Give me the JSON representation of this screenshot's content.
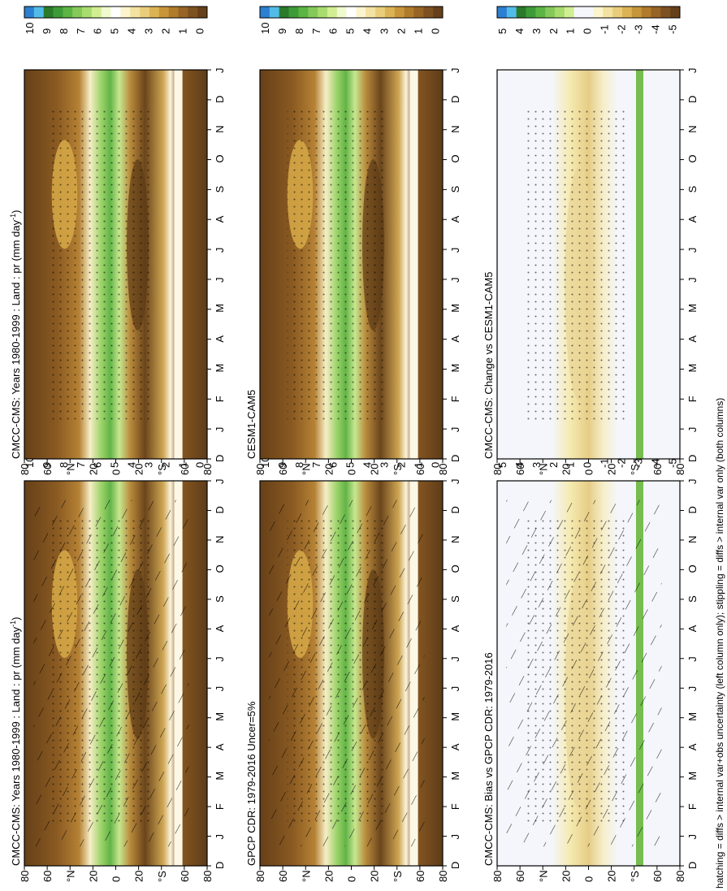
{
  "figure": {
    "footnote": "hatching = diffs > internal var+obs uncertainty (left column only); stippling = diffs > internal var only (both columns)"
  },
  "chart_data": [
    {
      "id": "left_top",
      "type": "heatmap",
      "title": "CMCC-CMS: Years 1980-1999 : Land : pr (mm day",
      "title_sup": "-1",
      "title_tail": ")",
      "x_months": [
        "D",
        "J",
        "F",
        "M",
        "A",
        "M",
        "J",
        "J",
        "A",
        "S",
        "O",
        "N",
        "D",
        "J"
      ],
      "lat_labels": [
        "80",
        "60",
        "°N",
        "20",
        "0",
        "20",
        "°S",
        "60",
        "80"
      ],
      "colorbar": {
        "ticks": [
          "10",
          "9",
          "8",
          "7",
          "6",
          "5",
          "4",
          "3",
          "2",
          "1",
          "0"
        ],
        "colors": [
          "#2c7fd1",
          "#52bce8",
          "#2a7a2a",
          "#3d9b37",
          "#5bb443",
          "#84c95a",
          "#a9dc6e",
          "#d2ee93",
          "#f1f9cf",
          "#ffffff",
          "#fbf4cd",
          "#f3e2a1",
          "#e9cd7b",
          "#dcb354",
          "#c8963a",
          "#b07b2b",
          "#976425",
          "#7e5120",
          "#66401a"
        ]
      },
      "hatching": true,
      "stippling": true
    },
    {
      "id": "right_top",
      "type": "heatmap",
      "title": "CMCC-CMS: Years 1980-1999 : Land : pr (mm day",
      "title_sup": "-1",
      "title_tail": ")",
      "x_months": [
        "D",
        "J",
        "F",
        "M",
        "A",
        "M",
        "J",
        "J",
        "A",
        "S",
        "O",
        "N",
        "D",
        "J"
      ],
      "lat_labels": [
        "80",
        "60",
        "°N",
        "20",
        "0",
        "20",
        "°S",
        "60",
        "80"
      ],
      "colorbar": {
        "ticks": [
          "10",
          "9",
          "8",
          "7",
          "6",
          "5",
          "4",
          "3",
          "2",
          "1",
          "0"
        ],
        "colors": [
          "#2c7fd1",
          "#52bce8",
          "#2a7a2a",
          "#3d9b37",
          "#5bb443",
          "#84c95a",
          "#a9dc6e",
          "#d2ee93",
          "#f1f9cf",
          "#ffffff",
          "#fbf4cd",
          "#f3e2a1",
          "#e9cd7b",
          "#dcb354",
          "#c8963a",
          "#b07b2b",
          "#976425",
          "#7e5120",
          "#66401a"
        ]
      },
      "hatching": false,
      "stippling": true
    },
    {
      "id": "left_mid",
      "type": "heatmap",
      "title": "GPCP CDR: 1979-2016 Uncer=5%",
      "x_months": [
        "D",
        "J",
        "F",
        "M",
        "A",
        "M",
        "J",
        "J",
        "A",
        "S",
        "O",
        "N",
        "D",
        "J"
      ],
      "lat_labels": [
        "80",
        "60",
        "°N",
        "20",
        "0",
        "20",
        "°S",
        "60",
        "80"
      ],
      "colorbar": {
        "ticks": [
          "10",
          "9",
          "8",
          "7",
          "6",
          "5",
          "4",
          "3",
          "2",
          "1",
          "0"
        ],
        "colors": [
          "#2c7fd1",
          "#52bce8",
          "#2a7a2a",
          "#3d9b37",
          "#5bb443",
          "#84c95a",
          "#a9dc6e",
          "#d2ee93",
          "#f1f9cf",
          "#ffffff",
          "#fbf4cd",
          "#f3e2a1",
          "#e9cd7b",
          "#dcb354",
          "#c8963a",
          "#b07b2b",
          "#976425",
          "#7e5120",
          "#66401a"
        ]
      },
      "hatching": true,
      "stippling": true
    },
    {
      "id": "right_mid",
      "type": "heatmap",
      "title": "CESM1-CAM5",
      "x_months": [
        "D",
        "J",
        "F",
        "M",
        "A",
        "M",
        "J",
        "J",
        "A",
        "S",
        "O",
        "N",
        "D",
        "J"
      ],
      "lat_labels": [
        "80",
        "60",
        "°N",
        "20",
        "0",
        "20",
        "°S",
        "60",
        "80"
      ],
      "colorbar": {
        "ticks": [
          "10",
          "9",
          "8",
          "7",
          "6",
          "5",
          "4",
          "3",
          "2",
          "1",
          "0"
        ],
        "colors": [
          "#2c7fd1",
          "#52bce8",
          "#2a7a2a",
          "#3d9b37",
          "#5bb443",
          "#84c95a",
          "#a9dc6e",
          "#d2ee93",
          "#f1f9cf",
          "#ffffff",
          "#fbf4cd",
          "#f3e2a1",
          "#e9cd7b",
          "#dcb354",
          "#c8963a",
          "#b07b2b",
          "#976425",
          "#7e5120",
          "#66401a"
        ]
      },
      "hatching": false,
      "stippling": true
    },
    {
      "id": "left_bot",
      "type": "heatmap",
      "title": "CMCC-CMS: Bias vs GPCP CDR: 1979-2016",
      "x_months": [
        "D",
        "J",
        "F",
        "M",
        "A",
        "M",
        "J",
        "J",
        "A",
        "S",
        "O",
        "N",
        "D",
        "J"
      ],
      "lat_labels": [
        "80",
        "60",
        "°N",
        "20",
        "0",
        "20",
        "°S",
        "60",
        "80"
      ],
      "colorbar": {
        "ticks": [
          "5",
          "4",
          "3",
          "2",
          "1",
          "0",
          "-1",
          "-2",
          "-3",
          "-4",
          "-5"
        ],
        "colors": [
          "#2c7fd1",
          "#52bce8",
          "#2a7a2a",
          "#3d9b37",
          "#5bb443",
          "#84c95a",
          "#a9dc6e",
          "#d2ee93",
          "#f4f6fb",
          "#f4f6fb",
          "#fbf4cd",
          "#f3e2a1",
          "#e9cd7b",
          "#dcb354",
          "#c8963a",
          "#b07b2b",
          "#976425",
          "#7e5120",
          "#66401a"
        ]
      },
      "hatching": true,
      "stippling": true
    },
    {
      "id": "right_bot",
      "type": "heatmap",
      "title": "CMCC-CMS: Change vs CESM1-CAM5",
      "x_months": [
        "D",
        "J",
        "F",
        "M",
        "A",
        "M",
        "J",
        "J",
        "A",
        "S",
        "O",
        "N",
        "D",
        "J"
      ],
      "lat_labels": [
        "80",
        "60",
        "°N",
        "20",
        "0",
        "20",
        "°S",
        "60",
        "80"
      ],
      "colorbar": {
        "ticks": [
          "5",
          "4",
          "3",
          "2",
          "1",
          "0",
          "-1",
          "-2",
          "-3",
          "-4",
          "-5"
        ],
        "colors": [
          "#2c7fd1",
          "#52bce8",
          "#2a7a2a",
          "#3d9b37",
          "#5bb443",
          "#84c95a",
          "#a9dc6e",
          "#d2ee93",
          "#f4f6fb",
          "#f4f6fb",
          "#fbf4cd",
          "#f3e2a1",
          "#e9cd7b",
          "#dcb354",
          "#c8963a",
          "#b07b2b",
          "#976425",
          "#7e5120",
          "#66401a"
        ]
      },
      "hatching": false,
      "stippling": true
    }
  ]
}
